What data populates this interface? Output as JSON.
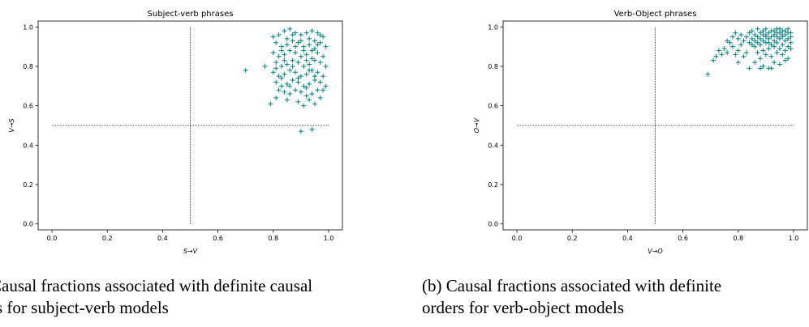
{
  "chart_data": [
    {
      "type": "scatter",
      "title": "Subject-verb phrases",
      "xlabel": "S→V",
      "ylabel": "V→S",
      "xlim": [
        -0.05,
        1.05
      ],
      "ylim": [
        -0.03,
        1.03
      ],
      "xticks": [
        "0.0",
        "0.2",
        "0.4",
        "0.6",
        "0.8",
        "1.0"
      ],
      "yticks": [
        "0.0",
        "0.2",
        "0.4",
        "0.6",
        "0.8",
        "1.0"
      ],
      "marker": "+",
      "color": "#008080",
      "reference_lines": {
        "x": 0.5,
        "y": 0.5
      },
      "grid": false,
      "series": [
        {
          "points": [
            [
              0.7,
              0.78
            ],
            [
              0.77,
              0.8
            ],
            [
              0.79,
              0.61
            ],
            [
              0.81,
              0.64
            ],
            [
              0.83,
              0.7
            ],
            [
              0.8,
              0.95
            ],
            [
              0.82,
              0.96
            ],
            [
              0.84,
              0.98
            ],
            [
              0.86,
              0.99
            ],
            [
              0.88,
              0.97
            ],
            [
              0.9,
              0.96
            ],
            [
              0.92,
              0.97
            ],
            [
              0.94,
              0.98
            ],
            [
              0.96,
              0.97
            ],
            [
              0.98,
              0.95
            ],
            [
              0.81,
              0.92
            ],
            [
              0.83,
              0.9
            ],
            [
              0.85,
              0.91
            ],
            [
              0.87,
              0.93
            ],
            [
              0.89,
              0.92
            ],
            [
              0.91,
              0.9
            ],
            [
              0.93,
              0.91
            ],
            [
              0.95,
              0.93
            ],
            [
              0.97,
              0.92
            ],
            [
              0.99,
              0.9
            ],
            [
              0.8,
              0.87
            ],
            [
              0.82,
              0.85
            ],
            [
              0.84,
              0.86
            ],
            [
              0.86,
              0.88
            ],
            [
              0.88,
              0.87
            ],
            [
              0.9,
              0.85
            ],
            [
              0.92,
              0.86
            ],
            [
              0.94,
              0.88
            ],
            [
              0.96,
              0.87
            ],
            [
              0.98,
              0.85
            ],
            [
              0.81,
              0.82
            ],
            [
              0.83,
              0.8
            ],
            [
              0.85,
              0.81
            ],
            [
              0.87,
              0.83
            ],
            [
              0.89,
              0.82
            ],
            [
              0.91,
              0.8
            ],
            [
              0.93,
              0.81
            ],
            [
              0.95,
              0.83
            ],
            [
              0.97,
              0.82
            ],
            [
              0.99,
              0.8
            ],
            [
              0.8,
              0.77
            ],
            [
              0.82,
              0.75
            ],
            [
              0.84,
              0.76
            ],
            [
              0.86,
              0.78
            ],
            [
              0.88,
              0.77
            ],
            [
              0.9,
              0.75
            ],
            [
              0.92,
              0.76
            ],
            [
              0.94,
              0.78
            ],
            [
              0.96,
              0.77
            ],
            [
              0.98,
              0.75
            ],
            [
              0.81,
              0.72
            ],
            [
              0.83,
              0.74
            ],
            [
              0.85,
              0.71
            ],
            [
              0.87,
              0.73
            ],
            [
              0.89,
              0.72
            ],
            [
              0.91,
              0.7
            ],
            [
              0.93,
              0.71
            ],
            [
              0.95,
              0.73
            ],
            [
              0.97,
              0.72
            ],
            [
              0.99,
              0.7
            ],
            [
              0.84,
              0.67
            ],
            [
              0.86,
              0.66
            ],
            [
              0.88,
              0.68
            ],
            [
              0.9,
              0.67
            ],
            [
              0.92,
              0.65
            ],
            [
              0.94,
              0.66
            ],
            [
              0.96,
              0.68
            ],
            [
              0.85,
              0.63
            ],
            [
              0.89,
              0.62
            ],
            [
              0.93,
              0.63
            ],
            [
              0.95,
              0.61
            ],
            [
              0.97,
              0.64
            ],
            [
              0.91,
              0.6
            ],
            [
              0.87,
              0.96
            ],
            [
              0.93,
              0.94
            ],
            [
              0.85,
              0.94
            ],
            [
              0.97,
              0.96
            ],
            [
              0.83,
              0.88
            ],
            [
              0.91,
              0.88
            ],
            [
              0.95,
              0.89
            ],
            [
              0.87,
              0.8
            ],
            [
              0.93,
              0.78
            ],
            [
              0.81,
              0.79
            ],
            [
              0.89,
              0.74
            ],
            [
              0.95,
              0.75
            ],
            [
              0.86,
              0.7
            ],
            [
              0.92,
              0.69
            ],
            [
              0.98,
              0.68
            ],
            [
              0.82,
              0.68
            ],
            [
              0.9,
              0.93
            ],
            [
              0.88,
              0.9
            ],
            [
              0.94,
              0.84
            ],
            [
              0.96,
              0.91
            ],
            [
              0.84,
              0.83
            ],
            [
              0.92,
              0.83
            ],
            [
              0.9,
              0.47
            ],
            [
              0.94,
              0.48
            ]
          ]
        }
      ]
    },
    {
      "type": "scatter",
      "title": "Verb-Object phrases",
      "xlabel": "V→O",
      "ylabel": "O→V",
      "xlim": [
        -0.05,
        1.05
      ],
      "ylim": [
        -0.03,
        1.03
      ],
      "xticks": [
        "0.0",
        "0.2",
        "0.4",
        "0.6",
        "0.8",
        "1.0"
      ],
      "yticks": [
        "0.0",
        "0.2",
        "0.4",
        "0.6",
        "0.8",
        "1.0"
      ],
      "marker": "+",
      "color": "#008080",
      "reference_lines": {
        "x": 0.5,
        "y": 0.5
      },
      "grid": false,
      "series": [
        {
          "points": [
            [
              0.69,
              0.76
            ],
            [
              0.71,
              0.83
            ],
            [
              0.72,
              0.85
            ],
            [
              0.73,
              0.88
            ],
            [
              0.74,
              0.86
            ],
            [
              0.75,
              0.89
            ],
            [
              0.76,
              0.87
            ],
            [
              0.77,
              0.92
            ],
            [
              0.78,
              0.9
            ],
            [
              0.79,
              0.86
            ],
            [
              0.8,
              0.88
            ],
            [
              0.81,
              0.91
            ],
            [
              0.82,
              0.93
            ],
            [
              0.83,
              0.95
            ],
            [
              0.84,
              0.97
            ],
            [
              0.85,
              0.98
            ],
            [
              0.86,
              0.96
            ],
            [
              0.87,
              0.99
            ],
            [
              0.88,
              0.97
            ],
            [
              0.89,
              0.98
            ],
            [
              0.9,
              0.99
            ],
            [
              0.91,
              0.97
            ],
            [
              0.92,
              0.98
            ],
            [
              0.93,
              0.96
            ],
            [
              0.94,
              0.99
            ],
            [
              0.95,
              0.97
            ],
            [
              0.96,
              0.98
            ],
            [
              0.97,
              0.96
            ],
            [
              0.98,
              0.97
            ],
            [
              0.99,
              0.95
            ],
            [
              0.84,
              0.92
            ],
            [
              0.85,
              0.94
            ],
            [
              0.86,
              0.93
            ],
            [
              0.87,
              0.95
            ],
            [
              0.88,
              0.94
            ],
            [
              0.89,
              0.96
            ],
            [
              0.9,
              0.95
            ],
            [
              0.91,
              0.94
            ],
            [
              0.92,
              0.95
            ],
            [
              0.93,
              0.93
            ],
            [
              0.94,
              0.95
            ],
            [
              0.95,
              0.94
            ],
            [
              0.96,
              0.95
            ],
            [
              0.97,
              0.93
            ],
            [
              0.98,
              0.94
            ],
            [
              0.99,
              0.92
            ],
            [
              0.86,
              0.9
            ],
            [
              0.88,
              0.91
            ],
            [
              0.9,
              0.92
            ],
            [
              0.92,
              0.91
            ],
            [
              0.94,
              0.92
            ],
            [
              0.96,
              0.91
            ],
            [
              0.98,
              0.9
            ],
            [
              0.87,
              0.87
            ],
            [
              0.89,
              0.88
            ],
            [
              0.91,
              0.89
            ],
            [
              0.93,
              0.9
            ],
            [
              0.95,
              0.89
            ],
            [
              0.97,
              0.88
            ],
            [
              0.99,
              0.89
            ],
            [
              0.88,
              0.84
            ],
            [
              0.9,
              0.86
            ],
            [
              0.92,
              0.85
            ],
            [
              0.94,
              0.87
            ],
            [
              0.96,
              0.86
            ],
            [
              0.98,
              0.84
            ],
            [
              0.86,
              0.82
            ],
            [
              0.89,
              0.8
            ],
            [
              0.91,
              0.79
            ],
            [
              0.93,
              0.82
            ],
            [
              0.95,
              0.81
            ],
            [
              0.97,
              0.83
            ],
            [
              0.84,
              0.79
            ],
            [
              0.88,
              0.79
            ],
            [
              0.92,
              0.79
            ],
            [
              0.8,
              0.82
            ],
            [
              0.82,
              0.85
            ],
            [
              0.83,
              0.87
            ],
            [
              0.81,
              0.96
            ],
            [
              0.85,
              0.91
            ],
            [
              0.87,
              0.92
            ],
            [
              0.89,
              0.93
            ],
            [
              0.91,
              0.92
            ],
            [
              0.93,
              0.98
            ],
            [
              0.95,
              0.99
            ],
            [
              0.97,
              0.98
            ],
            [
              0.99,
              0.97
            ],
            [
              0.9,
              0.96
            ],
            [
              0.94,
              0.97
            ],
            [
              0.96,
              0.96
            ],
            [
              0.98,
              0.99
            ],
            [
              0.78,
              0.95
            ],
            [
              0.76,
              0.93
            ],
            [
              0.8,
              0.94
            ],
            [
              0.79,
              0.97
            ]
          ]
        }
      ]
    }
  ],
  "captions": [
    "(a) Causal fractions associated with definite causal orders for subject-verb models",
    "(b) Causal fractions associated with definite causal orders for verb-object models"
  ],
  "caption_lines": [
    [
      "Causal fractions associated with definite causal",
      "rs for subject-verb models"
    ],
    [
      "(b) Causal fractions associated with definite",
      "orders for verb-object models"
    ]
  ]
}
